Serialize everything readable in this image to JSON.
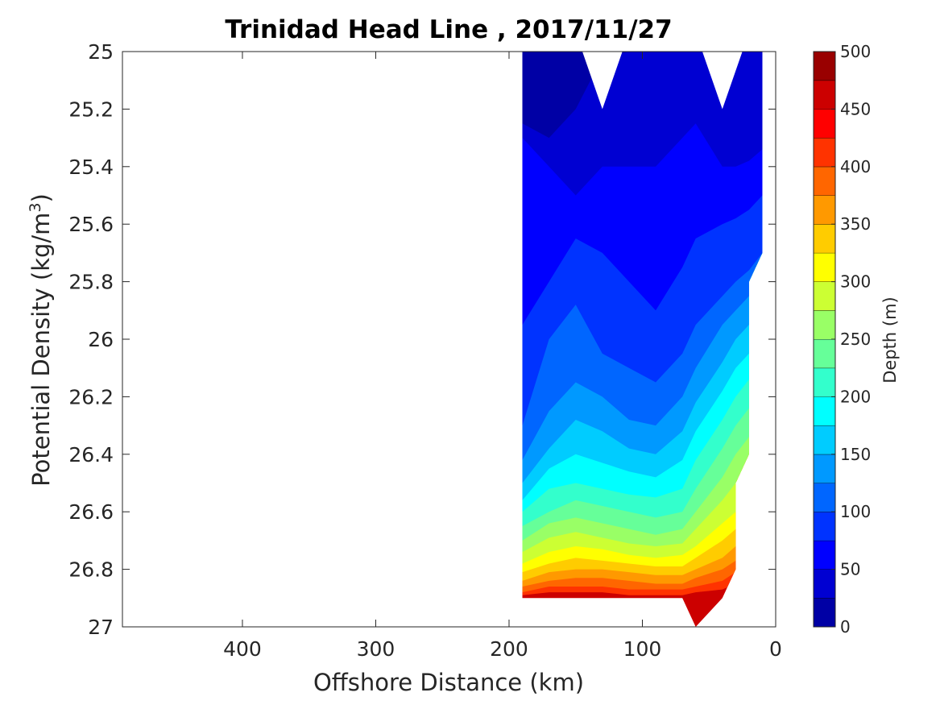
{
  "chart_data": {
    "type": "contour",
    "title": "Trinidad Head Line , 2017/11/27",
    "xlabel": "Offshore Distance (km)",
    "ylabel_main": "Potential Density (kg/m",
    "ylabel_sup": "3",
    "ylabel_close": ")",
    "colorbar_label": "Depth (m)",
    "xlim": [
      490,
      0
    ],
    "ylim": [
      27,
      25
    ],
    "y_reversed": true,
    "x_reversed": true,
    "xticks": [
      400,
      300,
      200,
      100,
      0
    ],
    "xtick_labels": [
      "400",
      "300",
      "200",
      "100",
      "0"
    ],
    "yticks": [
      25,
      25.2,
      25.4,
      25.6,
      25.8,
      26,
      26.2,
      26.4,
      26.6,
      26.8,
      27
    ],
    "ytick_labels": [
      "25",
      "25.2",
      "25.4",
      "25.6",
      "25.8",
      "26",
      "26.2",
      "26.4",
      "26.6",
      "26.8",
      "27"
    ],
    "colorbar_range": [
      0,
      500
    ],
    "colorbar_ticks": [
      0,
      50,
      100,
      150,
      200,
      250,
      300,
      350,
      400,
      450,
      500
    ],
    "colorbar_tick_labels": [
      "0",
      "50",
      "100",
      "150",
      "200",
      "250",
      "300",
      "350",
      "400",
      "450",
      "500"
    ],
    "contour_interval": 25,
    "colormap": "jet",
    "colormap_stops": [
      "#00008f",
      "#0000ff",
      "#00ffff",
      "#ffff00",
      "#ff0000",
      "#800000"
    ],
    "grid": false,
    "station_x": [
      190,
      170,
      150,
      130,
      110,
      90,
      70,
      60,
      40,
      30,
      20,
      10
    ],
    "depth_isolines": [
      {
        "level": 25,
        "y": [
          25.25,
          25.3,
          25.2,
          25.02,
          25.0,
          25.0,
          25.0,
          25.0,
          25.0,
          25.0,
          25.0,
          25.0
        ]
      },
      {
        "level": 50,
        "y": [
          25.3,
          25.4,
          25.5,
          25.4,
          25.4,
          25.4,
          25.3,
          25.25,
          25.4,
          25.4,
          25.38,
          25.34
        ]
      },
      {
        "level": 75,
        "y": [
          25.95,
          25.8,
          25.65,
          25.7,
          25.8,
          25.9,
          25.75,
          25.65,
          25.6,
          25.58,
          25.55,
          25.5
        ]
      },
      {
        "level": 100,
        "y": [
          26.3,
          26.0,
          25.88,
          26.05,
          26.1,
          26.15,
          26.05,
          25.95,
          25.85,
          25.8,
          25.76,
          25.7
        ]
      },
      {
        "level": 125,
        "y": [
          26.42,
          26.25,
          26.15,
          26.2,
          26.28,
          26.3,
          26.2,
          26.1,
          25.95,
          25.9,
          25.85,
          25.8
        ]
      },
      {
        "level": 150,
        "y": [
          26.5,
          26.38,
          26.28,
          26.32,
          26.38,
          26.4,
          26.32,
          26.22,
          26.08,
          26.0,
          25.95,
          25.9
        ]
      },
      {
        "level": 175,
        "y": [
          26.56,
          26.45,
          26.4,
          26.43,
          26.46,
          26.48,
          26.42,
          26.32,
          26.18,
          26.1,
          26.05,
          26.0
        ]
      },
      {
        "level": 200,
        "y": [
          26.6,
          26.52,
          26.5,
          26.52,
          26.54,
          26.55,
          26.52,
          26.42,
          26.28,
          26.2,
          26.14,
          26.1
        ]
      },
      {
        "level": 225,
        "y": [
          26.65,
          26.6,
          26.56,
          26.58,
          26.6,
          26.62,
          26.6,
          26.52,
          26.38,
          26.3,
          26.24,
          26.2
        ]
      },
      {
        "level": 250,
        "y": [
          26.7,
          26.64,
          26.62,
          26.64,
          26.66,
          26.68,
          26.66,
          26.6,
          26.48,
          26.4,
          26.34,
          26.3
        ]
      },
      {
        "level": 275,
        "y": [
          26.74,
          26.69,
          26.67,
          26.69,
          26.71,
          26.72,
          26.71,
          26.66,
          26.56,
          26.5,
          26.44,
          26.4
        ]
      },
      {
        "level": 300,
        "y": [
          26.78,
          26.74,
          26.72,
          26.73,
          26.75,
          26.76,
          26.75,
          26.72,
          26.64,
          26.6,
          26.54,
          26.5
        ]
      },
      {
        "level": 325,
        "y": [
          26.81,
          26.78,
          26.76,
          26.77,
          26.78,
          26.79,
          26.79,
          26.76,
          26.7,
          26.66,
          26.6,
          26.56
        ]
      },
      {
        "level": 350,
        "y": [
          26.84,
          26.81,
          26.8,
          26.8,
          26.81,
          26.82,
          26.82,
          26.8,
          26.76,
          26.72,
          26.66,
          26.62
        ]
      },
      {
        "level": 375,
        "y": [
          26.86,
          26.84,
          26.83,
          26.83,
          26.84,
          26.85,
          26.85,
          26.83,
          26.8,
          26.77,
          26.72,
          26.68
        ]
      },
      {
        "level": 400,
        "y": [
          26.88,
          26.86,
          26.86,
          26.86,
          26.87,
          26.87,
          26.87,
          26.86,
          26.84,
          26.81,
          26.77,
          26.74
        ]
      },
      {
        "level": 425,
        "y": [
          26.89,
          26.88,
          26.88,
          26.88,
          26.89,
          26.89,
          26.89,
          26.88,
          26.87,
          26.85,
          26.82,
          26.8
        ]
      }
    ],
    "data_extent": {
      "x": [
        190,
        170,
        150,
        130,
        110,
        90,
        70,
        60,
        40,
        30,
        30,
        20,
        20,
        10
      ],
      "y_top": [
        25,
        25,
        25,
        25,
        25,
        25,
        25,
        25,
        25,
        25,
        25,
        25,
        25,
        25
      ],
      "y_bottom": [
        26.9,
        26.9,
        26.9,
        26.9,
        26.9,
        26.9,
        26.9,
        27.0,
        26.9,
        26.8,
        26.5,
        26.4,
        25.8,
        25.7
      ]
    },
    "blank_notches": [
      {
        "x": [
          145,
          130,
          115
        ],
        "y": [
          25,
          25.2,
          25
        ]
      },
      {
        "x": [
          55,
          40,
          25
        ],
        "y": [
          25,
          25.2,
          25
        ]
      }
    ]
  }
}
